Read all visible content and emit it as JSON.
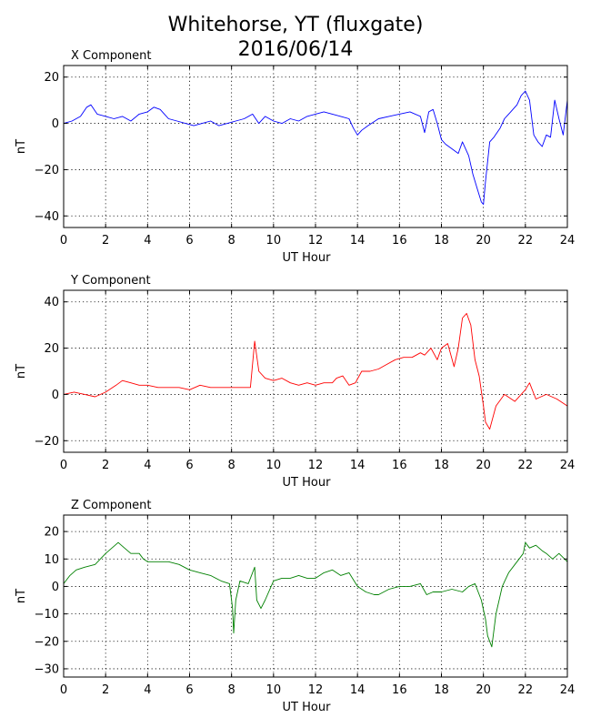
{
  "title_line1": "Whitehorse, YT (fluxgate)",
  "title_line2": "2016/06/14",
  "chart_data": [
    {
      "type": "line",
      "title": "X Component",
      "xlabel": "UT Hour",
      "ylabel": "nT",
      "xlim": [
        0,
        24
      ],
      "ylim": [
        -45,
        25
      ],
      "xticks": [
        0,
        2,
        4,
        6,
        8,
        10,
        12,
        14,
        16,
        18,
        20,
        22,
        24
      ],
      "yticks": [
        -40,
        -20,
        0,
        20
      ],
      "grid": true,
      "color": "#0000ff",
      "series": [
        {
          "x": [
            0,
            0.4,
            0.8,
            1.1,
            1.3,
            1.6,
            2.0,
            2.4,
            2.8,
            3.2,
            3.6,
            4.0,
            4.3,
            4.6,
            5.0,
            5.4,
            5.8,
            6.2,
            6.6,
            7.0,
            7.4,
            7.8,
            8.2,
            8.6,
            9.0,
            9.3,
            9.6,
            10.0,
            10.4,
            10.8,
            11.2,
            11.6,
            12.0,
            12.4,
            12.8,
            13.2,
            13.6,
            13.8,
            14.0,
            14.2,
            14.5,
            15.0,
            15.5,
            16.0,
            16.5,
            17.0,
            17.2,
            17.4,
            17.6,
            17.8,
            18.0,
            18.2,
            18.5,
            18.8,
            19.0,
            19.3,
            19.5,
            19.7,
            19.9,
            20.0,
            20.1,
            20.3,
            20.5,
            20.8,
            21.0,
            21.3,
            21.6,
            21.8,
            22.0,
            22.2,
            22.4,
            22.6,
            22.8,
            23.0,
            23.2,
            23.4,
            23.6,
            23.8,
            24.0
          ],
          "y": [
            0,
            1,
            3,
            7,
            8,
            4,
            3,
            2,
            3,
            1,
            4,
            5,
            7,
            6,
            2,
            1,
            0,
            -1,
            0,
            1,
            -1,
            0,
            1,
            2,
            4,
            0,
            3,
            1,
            0,
            2,
            1,
            3,
            4,
            5,
            4,
            3,
            2,
            -2,
            -5,
            -3,
            -1,
            2,
            3,
            4,
            5,
            3,
            -4,
            5,
            6,
            0,
            -7,
            -9,
            -11,
            -13,
            -8,
            -14,
            -22,
            -28,
            -34,
            -35,
            -25,
            -8,
            -6,
            -2,
            2,
            5,
            8,
            12,
            14,
            10,
            -5,
            -8,
            -10,
            -5,
            -6,
            10,
            2,
            -5,
            10
          ]
        }
      ]
    },
    {
      "type": "line",
      "title": "Y Component",
      "xlabel": "UT Hour",
      "ylabel": "nT",
      "xlim": [
        0,
        24
      ],
      "ylim": [
        -25,
        45
      ],
      "xticks": [
        0,
        2,
        4,
        6,
        8,
        10,
        12,
        14,
        16,
        18,
        20,
        22,
        24
      ],
      "yticks": [
        -20,
        0,
        20,
        40
      ],
      "grid": true,
      "color": "#ff0000",
      "series": [
        {
          "x": [
            0,
            0.5,
            1.0,
            1.5,
            2.0,
            2.5,
            2.8,
            3.2,
            3.6,
            4.0,
            4.5,
            5.0,
            5.5,
            6.0,
            6.5,
            7.0,
            7.5,
            8.0,
            8.5,
            8.9,
            9.1,
            9.3,
            9.6,
            10.0,
            10.4,
            10.8,
            11.2,
            11.6,
            12.0,
            12.4,
            12.8,
            13.0,
            13.3,
            13.6,
            13.9,
            14.2,
            14.6,
            15.0,
            15.4,
            15.8,
            16.2,
            16.6,
            17.0,
            17.2,
            17.5,
            17.8,
            18.0,
            18.3,
            18.6,
            18.8,
            19.0,
            19.2,
            19.4,
            19.6,
            19.8,
            20.0,
            20.1,
            20.3,
            20.6,
            21.0,
            21.5,
            22.0,
            22.2,
            22.5,
            23.0,
            23.5,
            24.0
          ],
          "y": [
            0,
            1,
            0,
            -1,
            1,
            4,
            6,
            5,
            4,
            4,
            3,
            3,
            3,
            2,
            4,
            3,
            3,
            3,
            3,
            3,
            23,
            10,
            7,
            6,
            7,
            5,
            4,
            5,
            4,
            5,
            5,
            7,
            8,
            4,
            5,
            10,
            10,
            11,
            13,
            15,
            16,
            16,
            18,
            17,
            20,
            15,
            20,
            22,
            12,
            20,
            33,
            35,
            30,
            15,
            8,
            -5,
            -12,
            -15,
            -5,
            0,
            -3,
            2,
            5,
            -2,
            0,
            -2,
            -5
          ]
        }
      ]
    },
    {
      "type": "line",
      "title": "Z Component",
      "xlabel": "UT Hour",
      "ylabel": "nT",
      "xlim": [
        0,
        24
      ],
      "ylim": [
        -33,
        26
      ],
      "xticks": [
        0,
        2,
        4,
        6,
        8,
        10,
        12,
        14,
        16,
        18,
        20,
        22,
        24
      ],
      "yticks": [
        -30,
        -20,
        -10,
        0,
        10,
        20
      ],
      "grid": true,
      "color": "#008000",
      "series": [
        {
          "x": [
            0,
            0.3,
            0.6,
            1.0,
            1.5,
            2.0,
            2.3,
            2.6,
            2.9,
            3.2,
            3.6,
            3.8,
            4.0,
            4.5,
            5.0,
            5.5,
            6.0,
            6.5,
            7.0,
            7.5,
            7.9,
            8.05,
            8.1,
            8.2,
            8.4,
            8.8,
            9.1,
            9.2,
            9.4,
            9.6,
            10.0,
            10.4,
            10.8,
            11.2,
            11.6,
            12.0,
            12.4,
            12.8,
            13.2,
            13.6,
            14.0,
            14.4,
            14.8,
            15.0,
            15.5,
            16.0,
            16.5,
            17.0,
            17.3,
            17.6,
            18.0,
            18.5,
            19.0,
            19.3,
            19.6,
            19.9,
            20.1,
            20.2,
            20.3,
            20.4,
            20.6,
            20.9,
            21.2,
            21.5,
            21.7,
            21.9,
            22.0,
            22.2,
            22.5,
            22.8,
            23.0,
            23.3,
            23.6,
            24.0
          ],
          "y": [
            1,
            4,
            6,
            7,
            8,
            12,
            14,
            16,
            14,
            12,
            12,
            10,
            9,
            9,
            9,
            8,
            6,
            5,
            4,
            2,
            1,
            -8,
            -17,
            -5,
            2,
            1,
            7,
            -5,
            -8,
            -5,
            2,
            3,
            3,
            4,
            3,
            3,
            5,
            6,
            4,
            5,
            0,
            -2,
            -3,
            -3,
            -1,
            0,
            0,
            1,
            -3,
            -2,
            -2,
            -1,
            -2,
            0,
            1,
            -5,
            -12,
            -18,
            -20,
            -22,
            -10,
            0,
            5,
            8,
            10,
            12,
            16,
            14,
            15,
            13,
            12,
            10,
            12,
            9
          ]
        }
      ]
    }
  ]
}
